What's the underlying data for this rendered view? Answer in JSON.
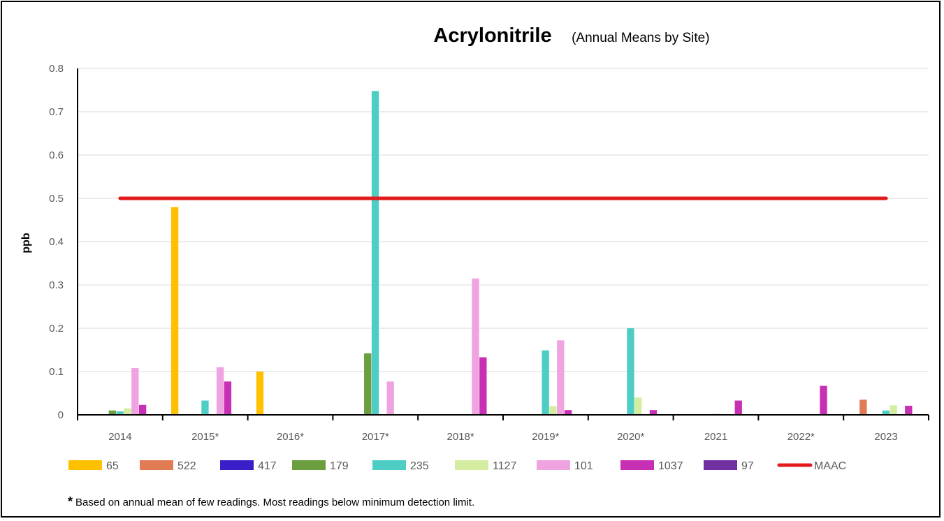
{
  "chart_data": {
    "type": "bar",
    "title": "Acrylonitrile",
    "subtitle": "(Annual Means by Site)",
    "ylabel": "ppb",
    "xlabel": "",
    "ylim": [
      0,
      0.8
    ],
    "yticks": [
      "0",
      "0.1",
      "0.2",
      "0.3",
      "0.4",
      "0.5",
      "0.6",
      "0.7",
      "0.8"
    ],
    "grid": true,
    "legend_position": "bottom",
    "categories": [
      "2014",
      "2015*",
      "2016*",
      "2017*",
      "2018*",
      "2019*",
      "2020*",
      "2021",
      "2022*",
      "2023"
    ],
    "series": [
      {
        "name": "65",
        "color": "#FFC000",
        "values": [
          0,
          0.48,
          0.1,
          0,
          0,
          0,
          0,
          0,
          0,
          0
        ]
      },
      {
        "name": "522",
        "color": "#E07B54",
        "values": [
          0,
          0,
          0,
          0,
          0,
          0,
          0,
          0,
          0,
          0.035
        ]
      },
      {
        "name": "417",
        "color": "#3A1FC8",
        "values": [
          0,
          0,
          0,
          0,
          0,
          0,
          0,
          0,
          0,
          0
        ]
      },
      {
        "name": "179",
        "color": "#6A9E3F",
        "values": [
          0.01,
          0,
          0,
          0.142,
          0,
          0,
          0,
          0,
          0,
          0
        ]
      },
      {
        "name": "235",
        "color": "#4ECDC4",
        "values": [
          0.008,
          0.033,
          0,
          0.748,
          0,
          0.149,
          0.2,
          0.002,
          0,
          0.01
        ]
      },
      {
        "name": "1127",
        "color": "#D4EDA1",
        "values": [
          0.015,
          0,
          0,
          0,
          0,
          0.02,
          0.04,
          0,
          0,
          0.022
        ]
      },
      {
        "name": "101",
        "color": "#EFA3E0",
        "values": [
          0.108,
          0.11,
          0,
          0.077,
          0.315,
          0.172,
          0,
          0,
          0,
          0
        ]
      },
      {
        "name": "1037",
        "color": "#C72FB5",
        "values": [
          0.023,
          0.077,
          0,
          0,
          0.133,
          0.011,
          0.011,
          0.033,
          0.067,
          0.021
        ]
      },
      {
        "name": "97",
        "color": "#7030A0",
        "values": [
          0,
          0,
          0,
          0,
          0,
          0,
          0,
          0,
          0,
          0
        ]
      }
    ],
    "reference_line": {
      "name": "MAAC",
      "value": 0.5,
      "color": "#E31A1C"
    }
  },
  "footnote": {
    "star": "*",
    "text": "Based on annual mean of few readings.  Most readings below minimum detection limit."
  }
}
